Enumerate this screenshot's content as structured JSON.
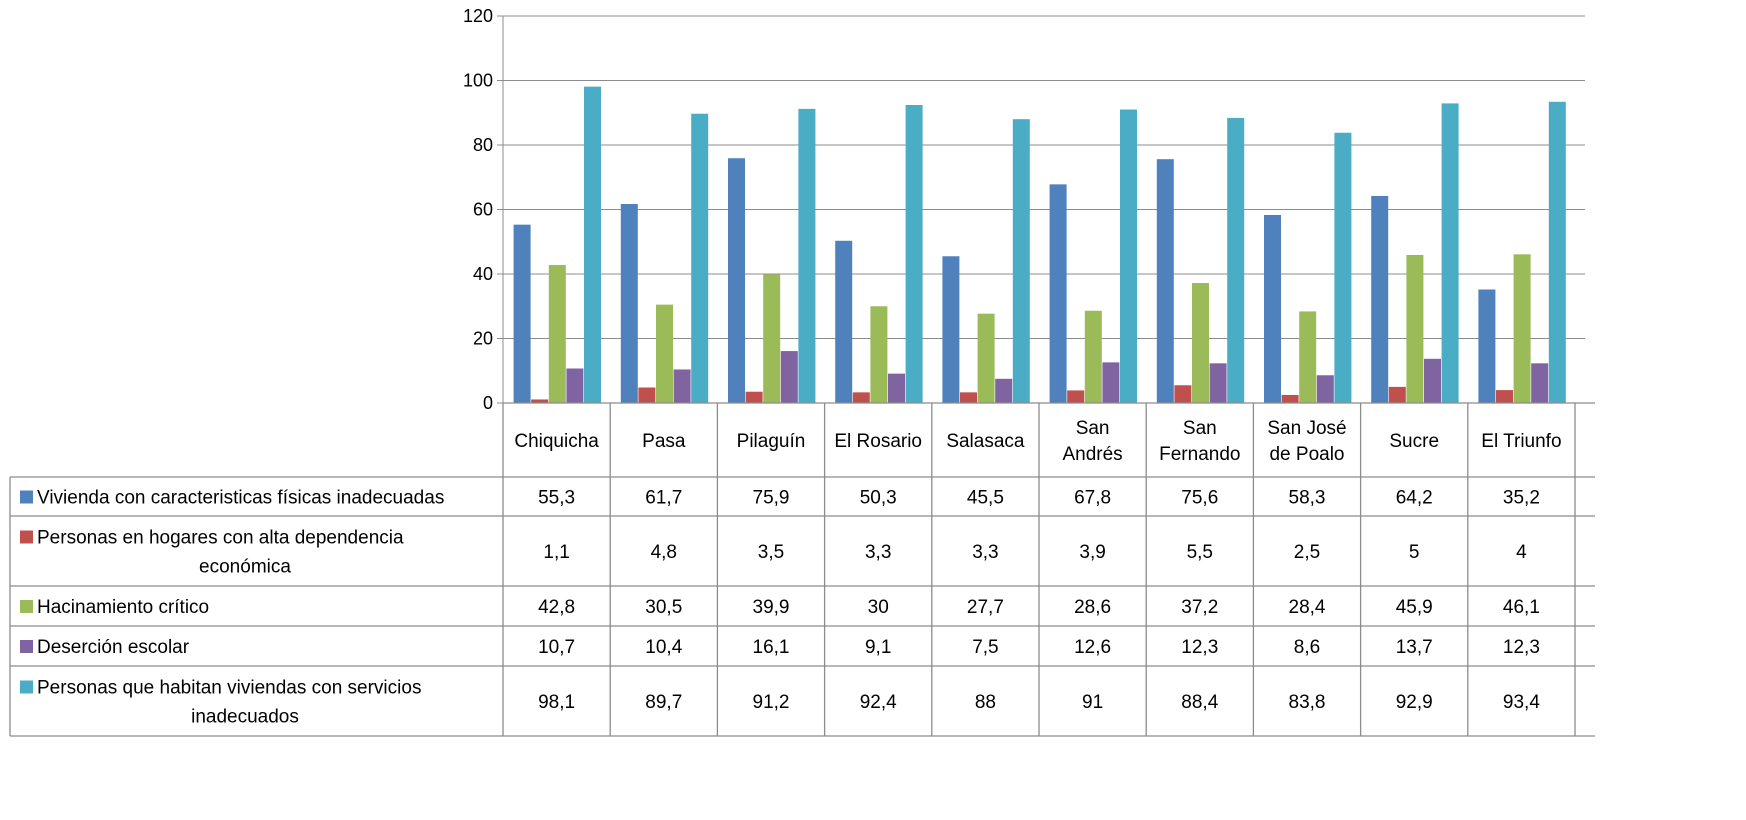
{
  "chart_data": {
    "type": "bar",
    "title": "",
    "xlabel": "",
    "ylabel": "",
    "ylim": [
      0,
      120
    ],
    "yticks": [
      0,
      20,
      40,
      60,
      80,
      100,
      120
    ],
    "grid": true,
    "legend": "data-table-left",
    "categories": [
      [
        "Chiquicha"
      ],
      [
        "Pasa"
      ],
      [
        "Pilaguín"
      ],
      [
        "El Rosario"
      ],
      [
        "Salasaca"
      ],
      [
        "San",
        "Andrés"
      ],
      [
        "San",
        "Fernando"
      ],
      [
        "San José",
        "de Poalo"
      ],
      [
        "Sucre"
      ],
      [
        "El Triunfo"
      ]
    ],
    "series": [
      {
        "name": "Vivienda con caracteristicas físicas inadecuadas",
        "name_lines": [
          "Vivienda con caracteristicas físicas inadecuadas"
        ],
        "color": "#4F81BD",
        "values": [
          55.3,
          61.7,
          75.9,
          50.3,
          45.5,
          67.8,
          75.6,
          58.3,
          64.2,
          35.2
        ],
        "labels": [
          "55,3",
          "61,7",
          "75,9",
          "50,3",
          "45,5",
          "67,8",
          "75,6",
          "58,3",
          "64,2",
          "35,2"
        ]
      },
      {
        "name": "Personas en hogares con alta dependencia económica",
        "name_lines": [
          "Personas en hogares con alta dependencia",
          "económica"
        ],
        "color": "#C0504D",
        "values": [
          1.1,
          4.8,
          3.5,
          3.3,
          3.3,
          3.9,
          5.5,
          2.5,
          5,
          4
        ],
        "labels": [
          "1,1",
          "4,8",
          "3,5",
          "3,3",
          "3,3",
          "3,9",
          "5,5",
          "2,5",
          "5",
          "4"
        ]
      },
      {
        "name": "Hacinamiento crítico",
        "name_lines": [
          "Hacinamiento crítico"
        ],
        "color": "#9BBB59",
        "values": [
          42.8,
          30.5,
          39.9,
          30,
          27.7,
          28.6,
          37.2,
          28.4,
          45.9,
          46.1
        ],
        "labels": [
          "42,8",
          "30,5",
          "39,9",
          "30",
          "27,7",
          "28,6",
          "37,2",
          "28,4",
          "45,9",
          "46,1"
        ]
      },
      {
        "name": "Deserción escolar",
        "name_lines": [
          "Deserción escolar"
        ],
        "color": "#8064A2",
        "values": [
          10.7,
          10.4,
          16.1,
          9.1,
          7.5,
          12.6,
          12.3,
          8.6,
          13.7,
          12.3
        ],
        "labels": [
          "10,7",
          "10,4",
          "16,1",
          "9,1",
          "7,5",
          "12,6",
          "12,3",
          "8,6",
          "13,7",
          "12,3"
        ]
      },
      {
        "name": "Personas que habitan viviendas con servicios inadecuados",
        "name_lines": [
          "Personas que habitan viviendas con servicios",
          "inadecuados"
        ],
        "color": "#4BACC6",
        "values": [
          98.1,
          89.7,
          91.2,
          92.4,
          88,
          91,
          88.4,
          83.8,
          92.9,
          93.4
        ],
        "labels": [
          "98,1",
          "89,7",
          "91,2",
          "92,4",
          "88",
          "91",
          "88,4",
          "83,8",
          "92,9",
          "93,4"
        ]
      }
    ]
  }
}
